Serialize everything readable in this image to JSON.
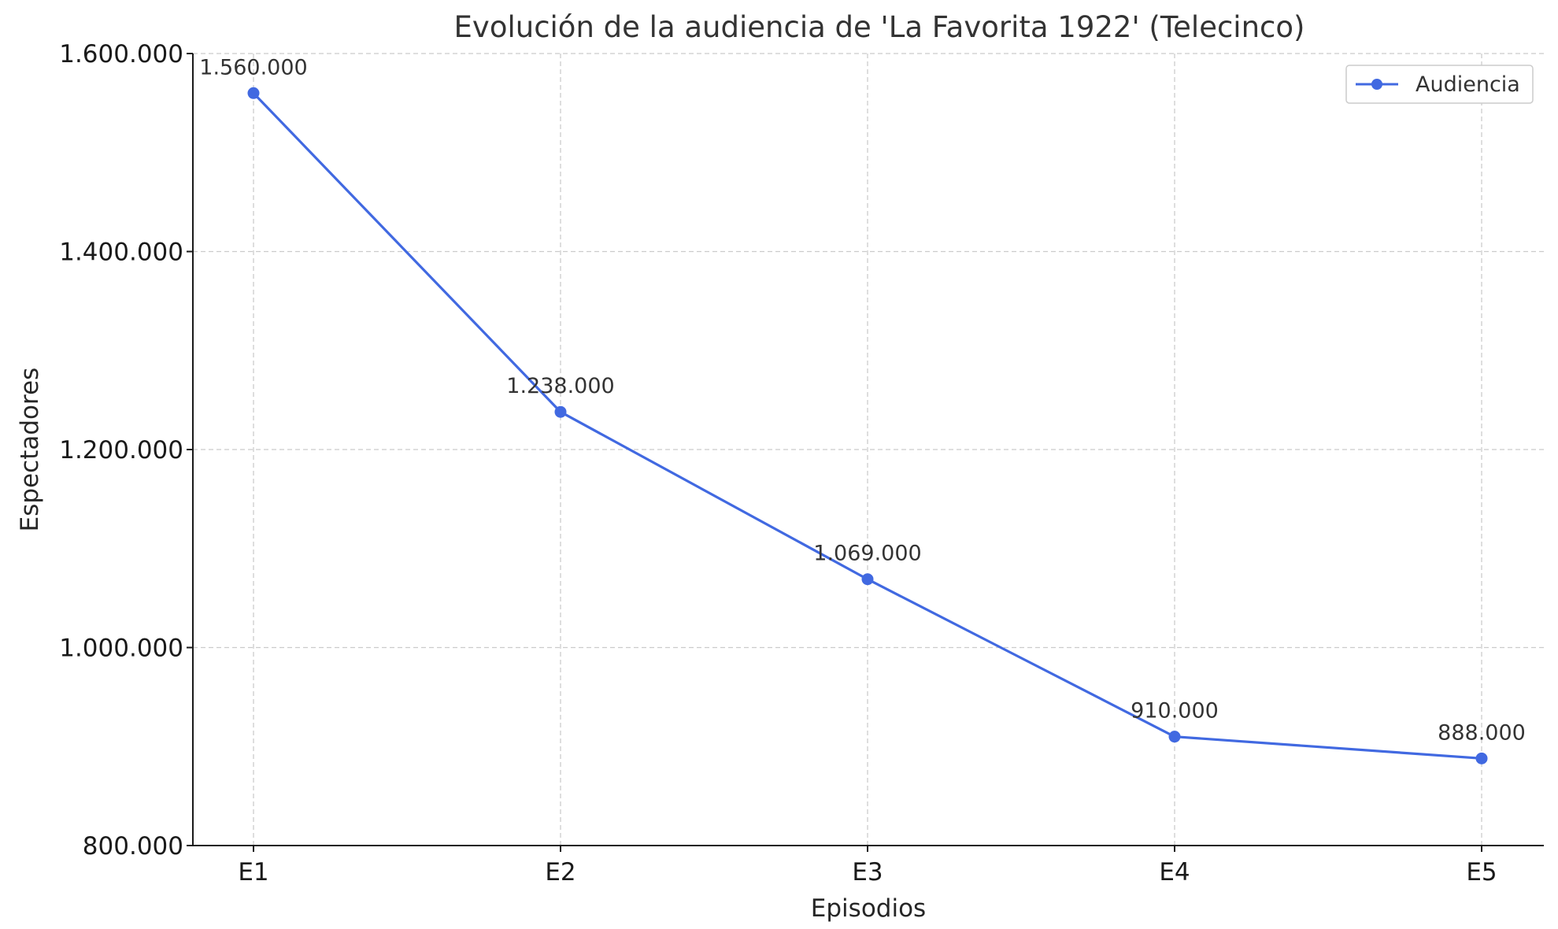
{
  "chart_data": {
    "type": "line",
    "title": "Evolución de la audiencia de 'La Favorita 1922' (Telecinco)",
    "xlabel": "Episodios",
    "ylabel": "Espectadores",
    "categories": [
      "E1",
      "E2",
      "E3",
      "E4",
      "E5"
    ],
    "series": [
      {
        "name": "Audiencia",
        "values": [
          1560000,
          1238000,
          1069000,
          910000,
          888000
        ],
        "data_labels": [
          "1.560.000",
          "1.238.000",
          "1.069.000",
          "910.000",
          "888.000"
        ],
        "color": "#4169e1",
        "marker": "circle"
      }
    ],
    "ylim": [
      800000,
      1600000
    ],
    "yticks": [
      800000,
      1000000,
      1200000,
      1400000,
      1600000
    ],
    "ytick_labels": [
      "800.000",
      "1.000.000",
      "1.200.000",
      "1.400.000",
      "1.600.000"
    ],
    "grid": true,
    "legend_position": "top-right"
  }
}
